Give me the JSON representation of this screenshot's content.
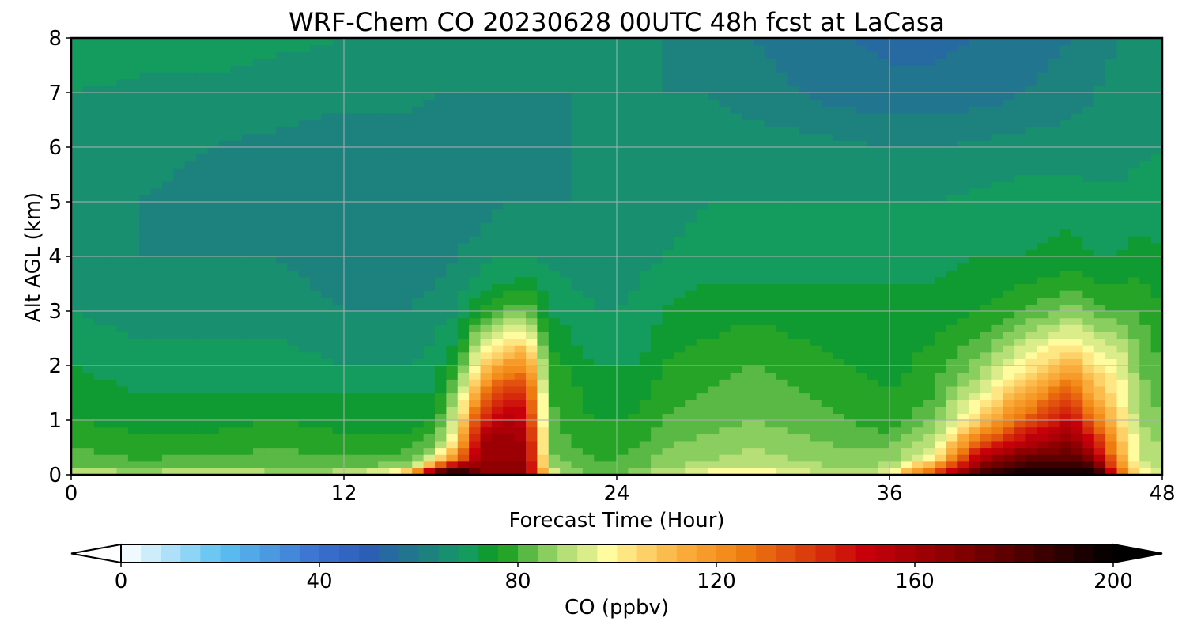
{
  "chart_data": {
    "type": "heatmap",
    "title": "WRF-Chem CO  20230628 00UTC 48h fcst at LaCasa",
    "xlabel": "Forecast Time (Hour)",
    "ylabel": "Alt AGL (km)",
    "xlim": [
      0,
      48
    ],
    "ylim": [
      0,
      8
    ],
    "xticks": [
      0,
      12,
      24,
      36,
      48
    ],
    "yticks": [
      0,
      1,
      2,
      3,
      4,
      5,
      6,
      7,
      8
    ],
    "grid": true,
    "z_hours": [
      0,
      3,
      6,
      9,
      12,
      14,
      15,
      16,
      17,
      18,
      19,
      20,
      21,
      22,
      23,
      24,
      25,
      26,
      28,
      30,
      32,
      34,
      36,
      38,
      40,
      42,
      44,
      45,
      46,
      47,
      48
    ],
    "z_alts_km": [
      0,
      0.1,
      0.25,
      0.5,
      0.75,
      1.0,
      1.5,
      2.0,
      2.5,
      3.0,
      3.5,
      4.0,
      5.0,
      6.0,
      7.0,
      8.0
    ],
    "z_ppbv": [
      [
        100,
        90,
        100,
        90,
        90,
        110,
        130,
        200,
        200,
        150,
        150,
        150,
        100,
        84,
        82,
        82,
        84,
        90,
        100,
        105,
        95,
        88,
        95,
        130,
        190,
        200,
        200,
        200,
        140,
        100,
        95
      ],
      [
        84,
        80,
        84,
        82,
        84,
        85,
        90,
        140,
        190,
        170,
        170,
        170,
        88,
        82,
        80,
        80,
        82,
        86,
        90,
        92,
        90,
        86,
        90,
        130,
        170,
        190,
        190,
        190,
        130,
        92,
        90
      ],
      [
        80,
        78,
        80,
        80,
        80,
        80,
        82,
        100,
        130,
        160,
        160,
        160,
        84,
        80,
        78,
        78,
        80,
        84,
        86,
        88,
        86,
        84,
        84,
        100,
        160,
        180,
        180,
        170,
        120,
        90,
        88
      ],
      [
        78,
        76,
        76,
        78,
        76,
        76,
        78,
        84,
        110,
        160,
        160,
        160,
        82,
        78,
        76,
        76,
        78,
        82,
        84,
        86,
        84,
        82,
        82,
        90,
        140,
        160,
        170,
        150,
        115,
        90,
        86
      ],
      [
        76,
        74,
        74,
        76,
        74,
        74,
        74,
        78,
        100,
        150,
        160,
        155,
        80,
        77,
        74,
        74,
        76,
        80,
        82,
        84,
        82,
        80,
        78,
        86,
        120,
        145,
        160,
        140,
        110,
        88,
        84
      ],
      [
        74,
        72,
        72,
        74,
        72,
        72,
        72,
        74,
        95,
        140,
        155,
        150,
        80,
        76,
        74,
        74,
        75,
        78,
        80,
        82,
        80,
        78,
        76,
        82,
        105,
        130,
        150,
        125,
        105,
        86,
        82
      ],
      [
        72,
        70,
        70,
        70,
        70,
        70,
        70,
        70,
        85,
        120,
        140,
        140,
        78,
        75,
        72,
        72,
        72,
        76,
        78,
        80,
        78,
        76,
        74,
        78,
        92,
        112,
        132,
        110,
        100,
        84,
        80
      ],
      [
        70,
        68,
        68,
        68,
        66,
        66,
        66,
        68,
        76,
        100,
        115,
        120,
        76,
        73,
        70,
        70,
        70,
        74,
        76,
        78,
        76,
        74,
        72,
        76,
        84,
        98,
        112,
        100,
        96,
        82,
        78
      ],
      [
        68,
        66,
        66,
        66,
        64,
        64,
        64,
        66,
        70,
        88,
        98,
        100,
        74,
        70,
        68,
        68,
        68,
        72,
        74,
        76,
        74,
        72,
        72,
        74,
        78,
        88,
        96,
        90,
        88,
        80,
        76
      ],
      [
        66,
        64,
        64,
        64,
        62,
        62,
        62,
        64,
        66,
        74,
        80,
        82,
        70,
        68,
        66,
        66,
        67,
        70,
        72,
        72,
        72,
        70,
        70,
        72,
        74,
        78,
        84,
        80,
        78,
        78,
        74
      ],
      [
        65,
        63,
        63,
        63,
        61,
        61,
        61,
        62,
        64,
        68,
        70,
        72,
        68,
        66,
        65,
        65,
        66,
        68,
        70,
        70,
        70,
        70,
        70,
        70,
        72,
        74,
        76,
        74,
        74,
        75,
        72
      ],
      [
        64,
        62,
        62,
        62,
        60,
        60,
        60,
        60,
        62,
        64,
        66,
        66,
        65,
        64,
        64,
        64,
        65,
        66,
        68,
        68,
        68,
        68,
        68,
        68,
        70,
        70,
        72,
        70,
        70,
        72,
        70
      ],
      [
        64,
        62,
        61,
        60,
        59,
        59,
        59,
        58,
        60,
        60,
        62,
        62,
        62,
        62,
        63,
        63,
        64,
        64,
        66,
        66,
        66,
        66,
        66,
        66,
        67,
        68,
        68,
        67,
        67,
        68,
        68
      ],
      [
        64,
        63,
        62,
        61,
        60,
        60,
        60,
        60,
        60,
        60,
        60,
        61,
        61,
        62,
        62,
        62,
        63,
        63,
        64,
        64,
        64,
        63,
        62,
        62,
        63,
        64,
        64,
        64,
        64,
        65,
        66
      ],
      [
        66,
        65,
        65,
        64,
        63,
        63,
        63,
        62,
        62,
        62,
        62,
        62,
        62,
        62,
        62,
        62,
        62,
        62,
        62,
        60,
        58,
        56,
        55,
        55,
        56,
        58,
        60,
        62,
        63,
        64,
        64
      ],
      [
        70,
        68,
        68,
        67,
        66,
        66,
        66,
        66,
        66,
        65,
        65,
        65,
        64,
        64,
        63,
        63,
        62,
        62,
        60,
        58,
        56,
        54,
        53,
        53,
        54,
        56,
        58,
        60,
        62,
        64,
        66
      ]
    ]
  },
  "colorbar": {
    "label": "CO  (ppbv)",
    "min": 0,
    "max": 200,
    "ticks": [
      0,
      40,
      80,
      120,
      160,
      200
    ],
    "color_stops": [
      {
        "value": 0,
        "color": "#ffffff"
      },
      {
        "value": 20,
        "color": "#5cc2f2"
      },
      {
        "value": 40,
        "color": "#3a6fd0"
      },
      {
        "value": 50,
        "color": "#2c5fb4"
      },
      {
        "value": 60,
        "color": "#1f7b86"
      },
      {
        "value": 70,
        "color": "#149c5e"
      },
      {
        "value": 76,
        "color": "#0d9a1a"
      },
      {
        "value": 88,
        "color": "#a4d86e"
      },
      {
        "value": 98,
        "color": "#fffb9e"
      },
      {
        "value": 112,
        "color": "#fbb240"
      },
      {
        "value": 125,
        "color": "#f08010"
      },
      {
        "value": 150,
        "color": "#c8000a"
      },
      {
        "value": 170,
        "color": "#800000"
      },
      {
        "value": 200,
        "color": "#000000"
      }
    ]
  }
}
